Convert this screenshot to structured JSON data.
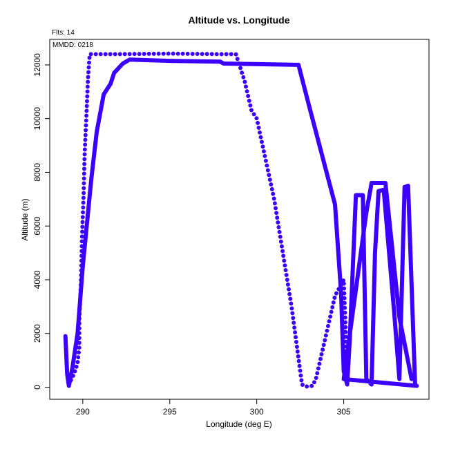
{
  "chart_data": {
    "type": "line",
    "title": "Altitude vs. Longitude",
    "xlabel": "Longitude (deg E)",
    "ylabel": "Altitude (m)",
    "annotations": {
      "flights": "Flts: 14",
      "date": "MMDD: 0218"
    },
    "xlim": [
      288.1,
      309.9
    ],
    "ylim": [
      -450,
      12950
    ],
    "xticks": [
      290,
      295,
      300,
      305
    ],
    "yticks": [
      0,
      2000,
      4000,
      6000,
      8000,
      10000,
      12000
    ],
    "series_color": "#3c00ff",
    "series": [
      {
        "dotted": false,
        "points": [
          [
            289.0,
            1900
          ],
          [
            289.1,
            500
          ],
          [
            289.2,
            50
          ],
          [
            289.4,
            700
          ],
          [
            289.7,
            2000
          ],
          [
            290.0,
            4500
          ],
          [
            290.5,
            7800
          ],
          [
            290.8,
            9500
          ],
          [
            291.2,
            10900
          ],
          [
            291.6,
            11300
          ],
          [
            291.8,
            11700
          ],
          [
            292.3,
            12050
          ],
          [
            292.7,
            12200
          ],
          [
            295.0,
            12150
          ],
          [
            297.9,
            12120
          ],
          [
            298.1,
            12050
          ],
          [
            302.4,
            12000
          ],
          [
            303.0,
            10500
          ],
          [
            304.5,
            6800
          ],
          [
            304.85,
            3500
          ],
          [
            305.0,
            600
          ],
          [
            305.2,
            100
          ],
          [
            305.35,
            1800
          ],
          [
            305.7,
            7150
          ],
          [
            306.1,
            7150
          ],
          [
            306.3,
            300
          ],
          [
            306.6,
            100
          ],
          [
            306.8,
            5000
          ],
          [
            307.0,
            7300
          ],
          [
            307.3,
            7350
          ],
          [
            307.9,
            2800
          ],
          [
            308.2,
            300
          ],
          [
            308.5,
            7450
          ],
          [
            308.7,
            7500
          ],
          [
            309.1,
            100
          ],
          [
            309.2,
            50
          ],
          [
            305.0,
            300
          ],
          [
            306.3,
            6500
          ],
          [
            306.6,
            7600
          ],
          [
            307.4,
            7600
          ],
          [
            308.2,
            2600
          ],
          [
            308.9,
            300
          ]
        ]
      },
      {
        "dotted": true,
        "points": [
          [
            289.2,
            100
          ],
          [
            289.5,
            500
          ],
          [
            289.7,
            900
          ],
          [
            289.8,
            1500
          ],
          [
            289.8,
            2500
          ],
          [
            289.9,
            4000
          ],
          [
            289.95,
            5500
          ],
          [
            290.05,
            7200
          ],
          [
            290.1,
            8600
          ],
          [
            290.2,
            10000
          ],
          [
            290.3,
            11500
          ],
          [
            290.4,
            12400
          ],
          [
            292.0,
            12400
          ],
          [
            295.0,
            12420
          ],
          [
            298.0,
            12400
          ],
          [
            298.8,
            12400
          ],
          [
            299.3,
            11400
          ],
          [
            299.7,
            10300
          ],
          [
            300.0,
            10000
          ],
          [
            301.0,
            7000
          ],
          [
            302.0,
            3000
          ],
          [
            302.6,
            100
          ],
          [
            302.8,
            20
          ],
          [
            303.2,
            50
          ],
          [
            303.4,
            300
          ],
          [
            304.5,
            3400
          ],
          [
            305.0,
            4000
          ],
          [
            305.2,
            600
          ]
        ]
      }
    ]
  }
}
